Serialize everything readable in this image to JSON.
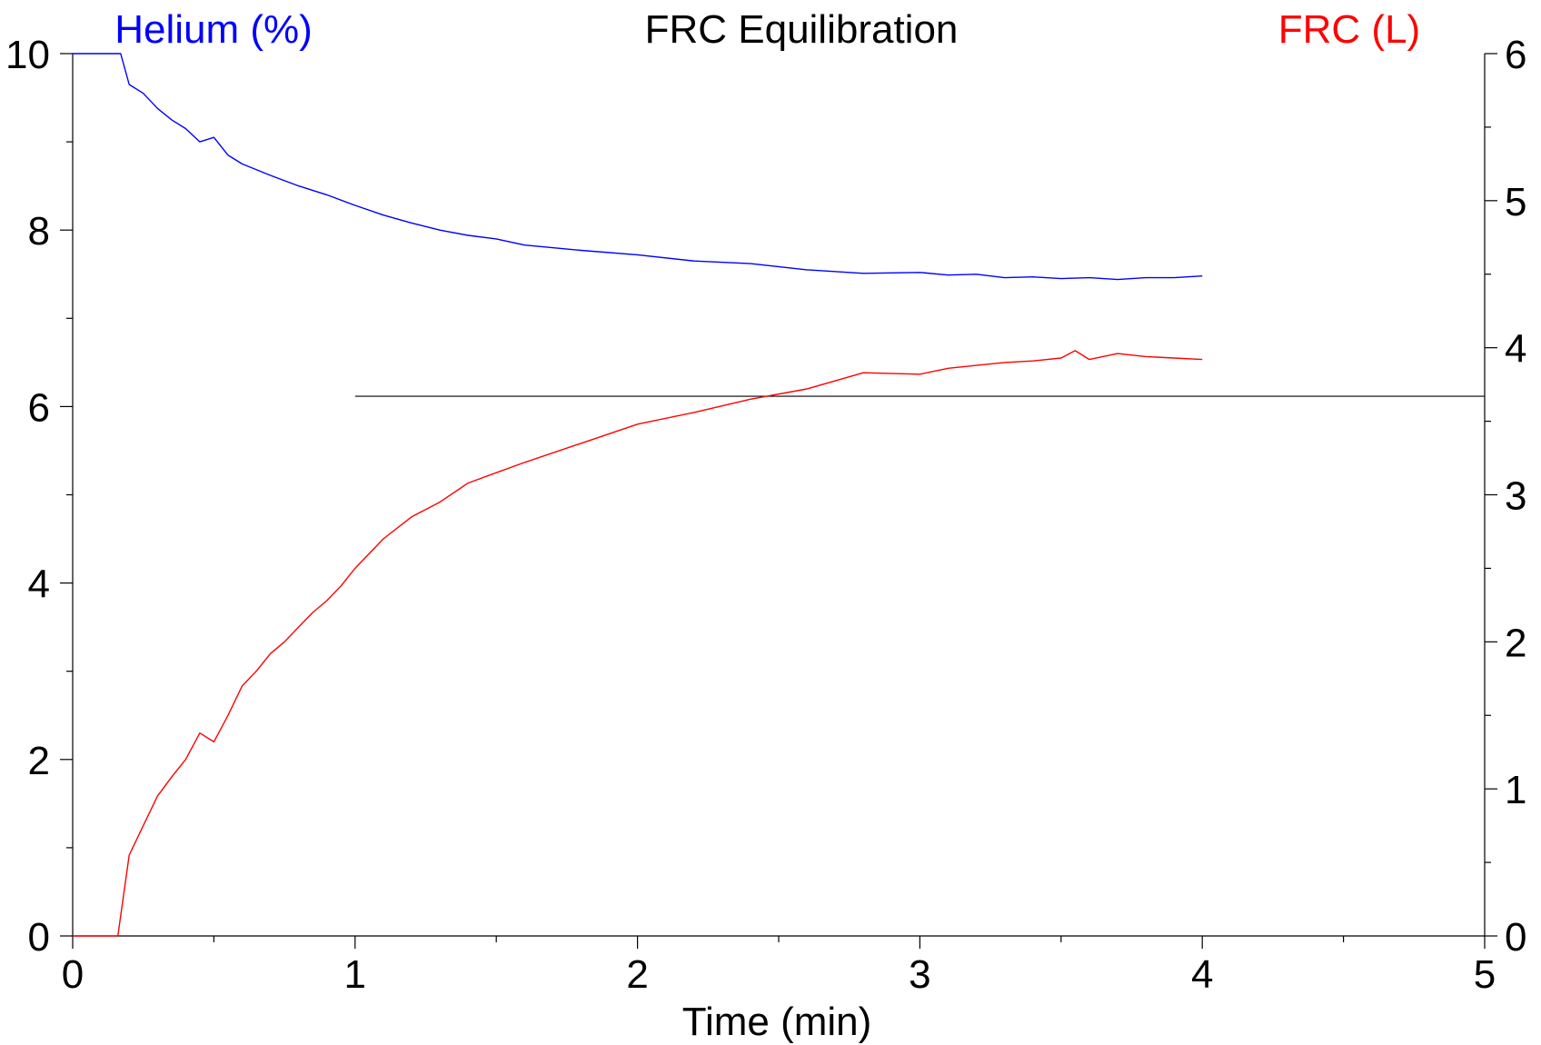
{
  "chart_data": {
    "type": "line",
    "title": "FRC Equilibration",
    "xlabel": "Time (min)",
    "ylabel_left": "Helium (%)",
    "ylabel_right": "FRC (L)",
    "xlim": [
      0,
      5
    ],
    "ylim_left": [
      0,
      10
    ],
    "ylim_right": [
      0,
      6
    ],
    "x_ticks": [
      "0",
      "1",
      "2",
      "3",
      "4",
      "5"
    ],
    "y_left_ticks": [
      "0",
      "2",
      "4",
      "6",
      "8",
      "10"
    ],
    "y_right_ticks": [
      "0",
      "1",
      "2",
      "3",
      "4",
      "5",
      "6"
    ],
    "grid": false,
    "reference_line": {
      "y_right": 3.67,
      "x_start": 1.0,
      "x_end": 5.0,
      "color": "#000000"
    },
    "series": [
      {
        "name": "Helium (%)",
        "axis": "left",
        "color": "#0000ff",
        "x": [
          0,
          0.17,
          0.2,
          0.25,
          0.3,
          0.35,
          0.4,
          0.45,
          0.5,
          0.55,
          0.6,
          0.7,
          0.8,
          0.9,
          1.0,
          1.1,
          1.2,
          1.3,
          1.4,
          1.5,
          1.6,
          1.8,
          2.0,
          2.2,
          2.4,
          2.6,
          2.8,
          3.0,
          3.1,
          3.2,
          3.3,
          3.4,
          3.5,
          3.6,
          3.7,
          3.8,
          3.9,
          4.0
        ],
        "y": [
          10,
          10,
          9.65,
          9.55,
          9.38,
          9.25,
          9.15,
          9.0,
          9.05,
          8.85,
          8.75,
          8.62,
          8.5,
          8.4,
          8.28,
          8.17,
          8.08,
          8.0,
          7.94,
          7.9,
          7.83,
          7.77,
          7.72,
          7.65,
          7.62,
          7.55,
          7.51,
          7.52,
          7.49,
          7.5,
          7.46,
          7.47,
          7.45,
          7.46,
          7.44,
          7.46,
          7.46,
          7.48
        ]
      },
      {
        "name": "FRC (L)",
        "axis": "right",
        "color": "#ff0000",
        "x": [
          0,
          0.16,
          0.2,
          0.25,
          0.3,
          0.35,
          0.4,
          0.45,
          0.5,
          0.55,
          0.6,
          0.65,
          0.7,
          0.75,
          0.8,
          0.85,
          0.9,
          0.95,
          1.0,
          1.1,
          1.2,
          1.3,
          1.4,
          1.5,
          1.6,
          1.8,
          2.0,
          2.2,
          2.4,
          2.6,
          2.8,
          3.0,
          3.1,
          3.2,
          3.3,
          3.4,
          3.5,
          3.55,
          3.6,
          3.7,
          3.8,
          3.9,
          4.0
        ],
        "y": [
          0,
          0,
          0.55,
          0.75,
          0.95,
          1.08,
          1.2,
          1.38,
          1.32,
          1.5,
          1.7,
          1.8,
          1.92,
          2.0,
          2.1,
          2.2,
          2.28,
          2.38,
          2.5,
          2.7,
          2.85,
          2.95,
          3.08,
          3.15,
          3.22,
          3.35,
          3.48,
          3.56,
          3.65,
          3.72,
          3.83,
          3.82,
          3.86,
          3.88,
          3.9,
          3.91,
          3.93,
          3.98,
          3.92,
          3.96,
          3.94,
          3.93,
          3.92
        ]
      }
    ]
  }
}
